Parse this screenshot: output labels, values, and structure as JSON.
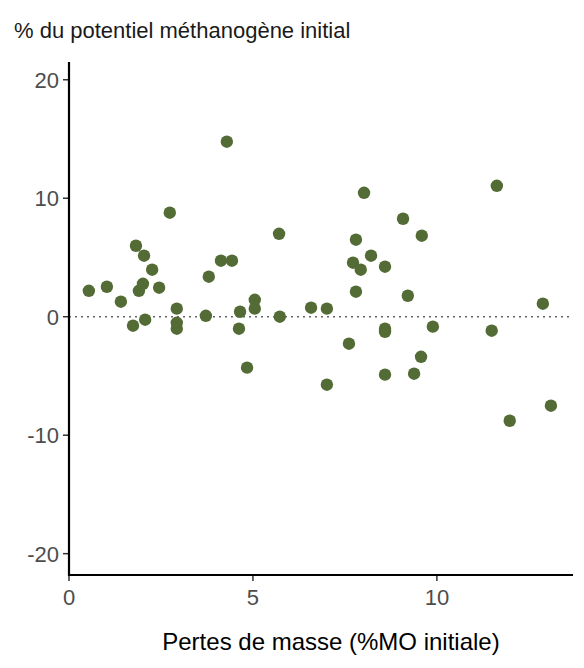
{
  "chart_data": {
    "type": "scatter",
    "title": "% du potentiel méthanogène initial",
    "x_label": "Pertes de masse (%MO initiale)",
    "x": [
      0.54,
      1.03,
      1.41,
      1.82,
      1.74,
      1.9,
      2.01,
      2.04,
      2.07,
      2.26,
      2.45,
      2.74,
      2.93,
      2.93,
      2.93,
      3.72,
      3.8,
      4.13,
      4.29,
      4.43,
      4.65,
      4.62,
      4.84,
      5.05,
      5.05,
      5.71,
      5.73,
      6.58,
      7.01,
      7.01,
      7.61,
      7.72,
      7.8,
      7.8,
      7.93,
      8.02,
      8.21,
      8.59,
      8.59,
      8.59,
      8.59,
      9.08,
      9.21,
      9.38,
      9.57,
      9.59,
      9.89,
      11.63,
      11.49,
      11.98,
      12.88,
      13.1
    ],
    "values": [
      2.19,
      2.53,
      1.27,
      5.99,
      -0.76,
      2.19,
      2.78,
      5.15,
      -0.25,
      3.97,
      2.45,
      8.78,
      0.68,
      -0.51,
      -1.01,
      0.08,
      3.38,
      4.73,
      14.77,
      4.73,
      0.42,
      -1.01,
      -4.3,
      1.43,
      0.68,
      7.0,
      0.0,
      0.76,
      0.68,
      -5.74,
      -2.28,
      4.56,
      6.5,
      2.11,
      3.97,
      10.46,
      5.15,
      4.22,
      -1.01,
      -1.27,
      -4.89,
      8.27,
      1.77,
      -4.81,
      -3.38,
      6.84,
      -0.84,
      11.05,
      -1.18,
      -8.78,
      1.1,
      -7.51
    ],
    "color": "#536b34",
    "marker": "circle",
    "hline": 0,
    "xlim": [
      0,
      13.7
    ],
    "xticks": [
      0,
      5,
      10
    ],
    "ylim": [
      -21.8,
      21.5
    ],
    "yticks": [
      -20,
      -10,
      0,
      10,
      20
    ],
    "grid": false
  }
}
